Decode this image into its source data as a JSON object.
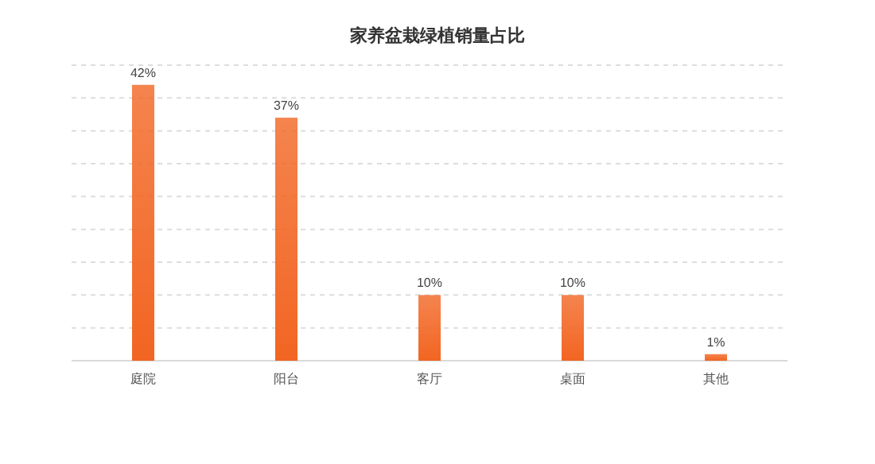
{
  "chart_data": {
    "type": "bar",
    "title": "家养盆栽绿植销量占比",
    "categories": [
      "庭院",
      "阳台",
      "客厅",
      "桌面",
      "其他"
    ],
    "values": [
      42,
      37,
      10,
      10,
      1
    ],
    "value_labels": [
      "42%",
      "37%",
      "10%",
      "10%",
      "1%"
    ],
    "color": "#f26522",
    "ylim": [
      0,
      45
    ],
    "yticks": [
      {
        "value": 0,
        "label": null
      },
      {
        "value": 5,
        "label": null
      },
      {
        "value": 10,
        "label": null
      },
      {
        "value": 15,
        "label": null
      },
      {
        "value": 20,
        "label": null
      },
      {
        "value": 25,
        "label": null
      },
      {
        "value": 30,
        "label": null
      },
      {
        "value": 35,
        "label": null
      },
      {
        "value": 40,
        "label": null
      },
      {
        "value": 45,
        "label": null
      }
    ],
    "grid": "y",
    "line_style": "dashed",
    "tick_labels": "x"
  }
}
